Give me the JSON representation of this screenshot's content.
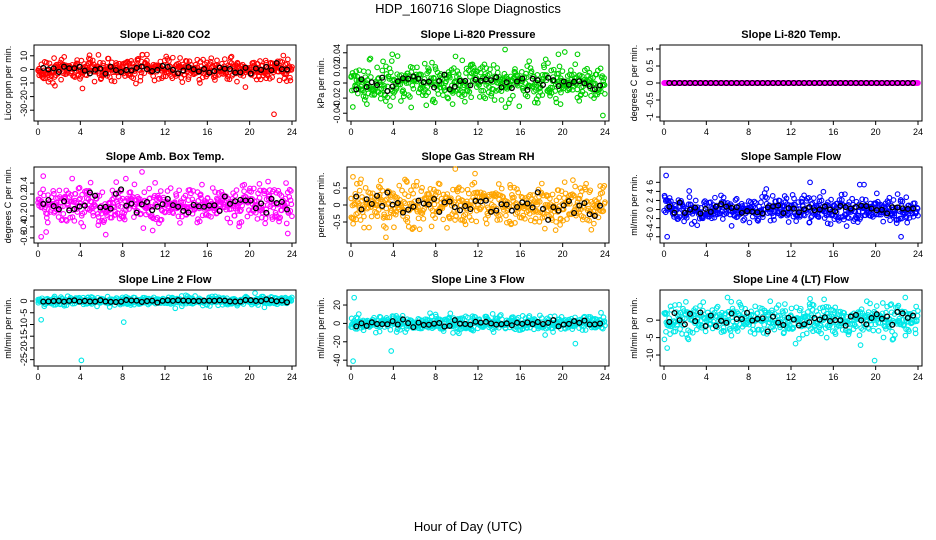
{
  "figure": {
    "title": "HDP_160716  Slope Diagnostics",
    "xlabel": "Hour of Day (UTC)"
  },
  "chart_data": [
    {
      "type": "scatter",
      "title": "Slope Li-820 CO2",
      "ylabel": "Licor ppm per min.",
      "xlim": [
        0,
        24
      ],
      "ylim": [
        -35,
        15
      ],
      "yticks": [
        10,
        0,
        -10,
        -20,
        -30
      ],
      "xticks": [
        0,
        4,
        8,
        12,
        16,
        20,
        24
      ],
      "color": "#ff0000",
      "mean_color": "#000000",
      "spread": 4,
      "meanSpread": 2,
      "outliers": [
        [
          22.3,
          -33
        ],
        [
          1.6,
          -12
        ],
        [
          4.2,
          -14
        ],
        [
          15.3,
          -10
        ],
        [
          18.8,
          -9
        ],
        [
          19.6,
          -13
        ]
      ]
    },
    {
      "type": "scatter",
      "title": "Slope Li-820 Pressure",
      "ylabel": "kPa per min.",
      "xlim": [
        0,
        24
      ],
      "ylim": [
        -0.045,
        0.045
      ],
      "yticks": [
        0.04,
        0.02,
        0.0,
        -0.02,
        -0.04
      ],
      "xticks": [
        0,
        4,
        8,
        12,
        16,
        20,
        24
      ],
      "color": "#00d000",
      "mean_color": "#000000",
      "spread": 0.012,
      "meanSpread": 0.006,
      "outliers": [
        [
          3.9,
          0.038
        ],
        [
          19.6,
          0.038
        ],
        [
          20.2,
          0.041
        ],
        [
          21.4,
          0.038
        ],
        [
          23.8,
          -0.043
        ],
        [
          19.8,
          -0.028
        ],
        [
          14.6,
          -0.032
        ],
        [
          9.6,
          -0.028
        ],
        [
          1.5,
          -0.028
        ]
      ]
    },
    {
      "type": "scatter",
      "title": "Slope Li-820 Temp.",
      "ylabel": "degrees C per min.",
      "xlim": [
        0,
        24
      ],
      "ylim": [
        -1.0,
        1.0
      ],
      "yticks": [
        1.0,
        0.5,
        0.0,
        -0.5,
        -1.0
      ],
      "xticks": [
        0,
        4,
        8,
        12,
        16,
        20,
        24
      ],
      "color": "#ff00ff",
      "mean_color": "#000000",
      "spread": 0.0,
      "meanSpread": 0.0,
      "outliers": []
    },
    {
      "type": "scatter",
      "title": "Slope Amb. Box Temp.",
      "ylabel": "degrees C per min.",
      "xlim": [
        0,
        24
      ],
      "ylim": [
        -0.62,
        0.62
      ],
      "yticks": [
        0.4,
        0.2,
        0.0,
        -0.2,
        -0.4,
        -0.6
      ],
      "xticks": [
        0,
        4,
        8,
        12,
        16,
        20,
        24
      ],
      "color": "#ff00ff",
      "mean_color": "#000000",
      "spread": 0.18,
      "meanSpread": 0.1,
      "outliers": [
        [
          0.3,
          -0.58
        ],
        [
          23.6,
          -0.52
        ],
        [
          6.4,
          -0.54
        ]
      ]
    },
    {
      "type": "scatter",
      "title": "Slope Gas Stream RH",
      "ylabel": "percent per min.",
      "xlim": [
        0,
        24
      ],
      "ylim": [
        -1.0,
        1.0
      ],
      "yticks": [
        0.5,
        0.0,
        -0.5
      ],
      "xticks": [
        0,
        4,
        8,
        12,
        16,
        20,
        24
      ],
      "color": "#ffa500",
      "mean_color": "#000000",
      "spread": 0.3,
      "meanSpread": 0.15,
      "outliers": [
        [
          3.3,
          -0.95
        ],
        [
          0.2,
          -0.55
        ],
        [
          5.1,
          0.75
        ],
        [
          2.8,
          0.72
        ]
      ]
    },
    {
      "type": "scatter",
      "title": "Slope Sample Flow",
      "ylabel": "ml/min per min.",
      "xlim": [
        0,
        24
      ],
      "ylim": [
        -6.5,
        8.5
      ],
      "yticks": [
        6,
        4,
        2,
        0,
        -2,
        -4,
        -6
      ],
      "xticks": [
        0,
        4,
        8,
        12,
        16,
        20,
        24
      ],
      "color": "#0000ff",
      "mean_color": "#000000",
      "spread": 1.4,
      "meanSpread": 0.6,
      "outliers": [
        [
          0.2,
          7.5
        ],
        [
          0.3,
          -6
        ],
        [
          22.4,
          -6
        ],
        [
          13.8,
          6.0
        ],
        [
          18.5,
          5.5
        ],
        [
          18.9,
          5.5
        ]
      ]
    },
    {
      "type": "scatter",
      "title": "Slope Line 2 Flow",
      "ylabel": "ml/min per min.",
      "xlim": [
        0,
        24
      ],
      "ylim": [
        -26,
        3
      ],
      "yticks": [
        0,
        -5,
        -10,
        -15,
        -20,
        -25
      ],
      "xticks": [
        0,
        4,
        8,
        12,
        16,
        20,
        24
      ],
      "color": "#00e8e8",
      "mean_color": "#000000",
      "spread": 0.9,
      "meanSpread": 0.3,
      "outliers": [
        [
          4.1,
          -25.3
        ],
        [
          8.1,
          -9
        ],
        [
          0.3,
          -8
        ]
      ]
    },
    {
      "type": "scatter",
      "title": "Slope Line 3 Flow",
      "ylabel": "ml/min per min.",
      "xlim": [
        0,
        24
      ],
      "ylim": [
        -42,
        32
      ],
      "yticks": [
        20,
        0,
        -20,
        -40
      ],
      "xticks": [
        0,
        4,
        8,
        12,
        16,
        20,
        24
      ],
      "color": "#00e8e8",
      "mean_color": "#000000",
      "spread": 4,
      "meanSpread": 2,
      "outliers": [
        [
          0.2,
          -41
        ],
        [
          0.3,
          28
        ],
        [
          3.8,
          -30
        ],
        [
          21.2,
          -22
        ]
      ]
    },
    {
      "type": "scatter",
      "title": "Slope Line 4 (LT) Flow",
      "ylabel": "ml/min per min.",
      "xlim": [
        0,
        24
      ],
      "ylim": [
        -12,
        7.5
      ],
      "yticks": [
        0,
        -5,
        -10
      ],
      "xticks": [
        0,
        4,
        8,
        12,
        16,
        20,
        24
      ],
      "color": "#00e8e8",
      "mean_color": "#000000",
      "spread": 2.2,
      "meanSpread": 1.2,
      "outliers": [
        [
          19.9,
          -11.6
        ],
        [
          6.0,
          6.5
        ],
        [
          22.8,
          6.5
        ],
        [
          0.3,
          -8
        ]
      ]
    }
  ]
}
